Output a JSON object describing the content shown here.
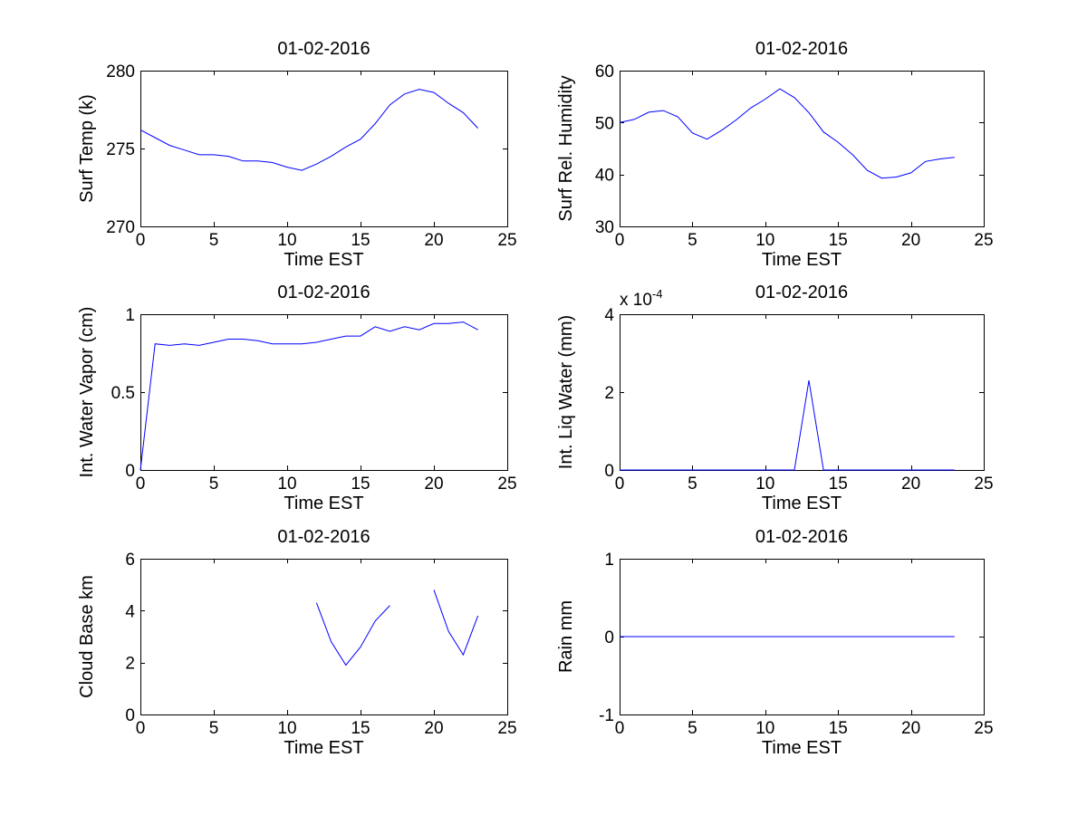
{
  "figure": {
    "background": "#ffffff",
    "line_color": "#0000ff",
    "axis_color": "#000000"
  },
  "chart_data": [
    {
      "type": "line",
      "title": "01-02-2016",
      "xlabel": "Time EST",
      "ylabel": "Surf Temp (k)",
      "xlim": [
        0,
        25
      ],
      "ylim": [
        270,
        280
      ],
      "xticks": [
        0,
        5,
        10,
        15,
        20,
        25
      ],
      "yticks": [
        270,
        275,
        280
      ],
      "exponent_label": null,
      "series": [
        {
          "name": "Surf Temp",
          "x": [
            0,
            1,
            2,
            3,
            4,
            5,
            6,
            7,
            8,
            9,
            10,
            11,
            12,
            13,
            14,
            15,
            16,
            17,
            18,
            19,
            20,
            21,
            22,
            23
          ],
          "y": [
            276.2,
            275.7,
            275.2,
            274.9,
            274.6,
            274.6,
            274.5,
            274.2,
            274.2,
            274.1,
            273.8,
            273.6,
            274.0,
            274.5,
            275.1,
            275.6,
            276.6,
            277.8,
            278.5,
            278.8,
            278.6,
            277.9,
            277.3,
            276.3
          ]
        }
      ]
    },
    {
      "type": "line",
      "title": "01-02-2016",
      "xlabel": "Time EST",
      "ylabel": "Surf Rel. Humidity",
      "xlim": [
        0,
        25
      ],
      "ylim": [
        30,
        60
      ],
      "xticks": [
        0,
        5,
        10,
        15,
        20,
        25
      ],
      "yticks": [
        30,
        40,
        50,
        60
      ],
      "exponent_label": null,
      "series": [
        {
          "name": "Surf Rel. Humidity",
          "x": [
            0,
            1,
            2,
            3,
            4,
            5,
            6,
            7,
            8,
            9,
            10,
            11,
            12,
            13,
            14,
            15,
            16,
            17,
            18,
            19,
            20,
            21,
            22,
            23
          ],
          "y": [
            50.0,
            50.6,
            52.0,
            52.3,
            51.1,
            48.0,
            46.8,
            48.5,
            50.5,
            52.8,
            54.5,
            56.5,
            54.8,
            51.9,
            48.2,
            46.2,
            43.8,
            40.8,
            39.3,
            39.5,
            40.3,
            42.5,
            43.0,
            43.3
          ]
        }
      ]
    },
    {
      "type": "line",
      "title": "01-02-2016",
      "xlabel": "Time EST",
      "ylabel": "Int. Water Vapor (cm)",
      "xlim": [
        0,
        25
      ],
      "ylim": [
        0,
        1
      ],
      "xticks": [
        0,
        5,
        10,
        15,
        20,
        25
      ],
      "yticks": [
        0,
        0.5,
        1
      ],
      "exponent_label": null,
      "series": [
        {
          "name": "Int. Water Vapor",
          "x": [
            0,
            1,
            2,
            3,
            4,
            5,
            6,
            7,
            8,
            9,
            10,
            11,
            12,
            13,
            14,
            15,
            16,
            17,
            18,
            19,
            20,
            21,
            22,
            23
          ],
          "y": [
            0.0,
            0.81,
            0.8,
            0.81,
            0.8,
            0.82,
            0.84,
            0.84,
            0.83,
            0.81,
            0.81,
            0.81,
            0.82,
            0.84,
            0.86,
            0.86,
            0.92,
            0.89,
            0.92,
            0.9,
            0.94,
            0.94,
            0.95,
            0.9
          ]
        }
      ]
    },
    {
      "type": "line",
      "title": "01-02-2016",
      "xlabel": "Time EST",
      "ylabel": "Int. Liq Water (mm)",
      "xlim": [
        0,
        25
      ],
      "ylim": [
        0,
        0.0004
      ],
      "xticks": [
        0,
        5,
        10,
        15,
        20,
        25
      ],
      "yticks": [
        0,
        0.0002,
        0.0004
      ],
      "ytick_labels": [
        "0",
        "2",
        "4"
      ],
      "exponent_label": {
        "base": "x 10",
        "exponent": "-4"
      },
      "series": [
        {
          "name": "Int. Liq Water",
          "x": [
            0,
            1,
            2,
            3,
            4,
            5,
            6,
            7,
            8,
            9,
            10,
            11,
            12,
            13,
            14,
            15,
            16,
            17,
            18,
            19,
            20,
            21,
            22,
            23
          ],
          "y": [
            0,
            0,
            0,
            0,
            0,
            0,
            0,
            0,
            0,
            0,
            0,
            0,
            0,
            0.00023,
            0,
            0,
            0,
            0,
            0,
            0,
            0,
            0,
            0,
            0
          ]
        }
      ]
    },
    {
      "type": "line",
      "title": "01-02-2016",
      "xlabel": "Time EST",
      "ylabel": "Cloud Base km",
      "xlim": [
        0,
        25
      ],
      "ylim": [
        0,
        6
      ],
      "xticks": [
        0,
        5,
        10,
        15,
        20,
        25
      ],
      "yticks": [
        0,
        2,
        4,
        6
      ],
      "exponent_label": null,
      "series": [
        {
          "name": "Cloud Base",
          "x": [
            0,
            1,
            2,
            3,
            4,
            5,
            6,
            7,
            8,
            9,
            10,
            11,
            12,
            13,
            14,
            15,
            16,
            17,
            18,
            19,
            20,
            21,
            22,
            23
          ],
          "y": [
            null,
            null,
            null,
            null,
            null,
            null,
            null,
            null,
            null,
            null,
            null,
            null,
            4.3,
            2.8,
            1.9,
            2.6,
            3.6,
            4.2,
            null,
            null,
            4.8,
            3.2,
            2.3,
            3.8
          ]
        }
      ]
    },
    {
      "type": "line",
      "title": "01-02-2016",
      "xlabel": "Time EST",
      "ylabel": "Rain mm",
      "xlim": [
        0,
        25
      ],
      "ylim": [
        -1,
        1
      ],
      "xticks": [
        0,
        5,
        10,
        15,
        20,
        25
      ],
      "yticks": [
        -1,
        0,
        1
      ],
      "exponent_label": null,
      "series": [
        {
          "name": "Rain",
          "x": [
            0,
            1,
            2,
            3,
            4,
            5,
            6,
            7,
            8,
            9,
            10,
            11,
            12,
            13,
            14,
            15,
            16,
            17,
            18,
            19,
            20,
            21,
            22,
            23
          ],
          "y": [
            0,
            0,
            0,
            0,
            0,
            0,
            0,
            0,
            0,
            0,
            0,
            0,
            0,
            0,
            0,
            0,
            0,
            0,
            0,
            0,
            0,
            0,
            0,
            0
          ]
        }
      ]
    }
  ]
}
